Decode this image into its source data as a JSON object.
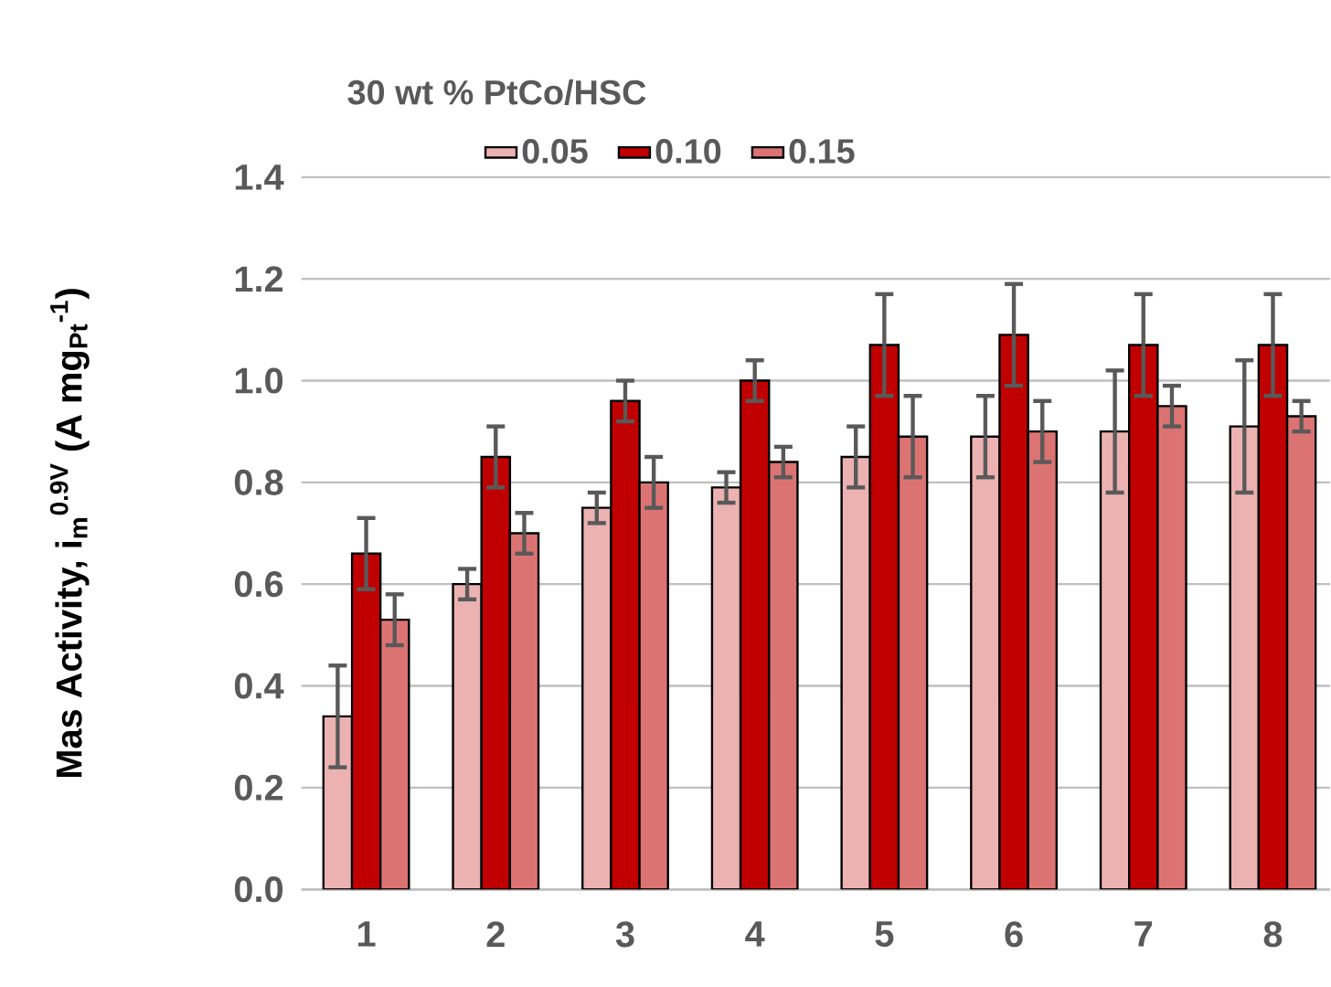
{
  "chart_data": {
    "type": "bar",
    "title": "30 wt % PtCo/HSC",
    "ylabel": "Mas Activity, i$_{m}$$^{0.9V}$ (A mg$_{Pt}$$^{-1}$)",
    "categories": [
      "1",
      "2",
      "3",
      "4",
      "5",
      "6",
      "7",
      "8"
    ],
    "series": [
      {
        "name": "0.05",
        "color": "#ecb2b2",
        "values": [
          0.34,
          0.6,
          0.75,
          0.79,
          0.85,
          0.89,
          0.9,
          0.91
        ],
        "errors": [
          0.1,
          0.03,
          0.03,
          0.03,
          0.06,
          0.08,
          0.12,
          0.13
        ]
      },
      {
        "name": "0.10",
        "color": "#c00000",
        "values": [
          0.66,
          0.85,
          0.96,
          1.0,
          1.07,
          1.09,
          1.07,
          1.07
        ],
        "errors": [
          0.07,
          0.06,
          0.04,
          0.04,
          0.1,
          0.1,
          0.1,
          0.1
        ]
      },
      {
        "name": "0.15",
        "color": "#dc7373",
        "values": [
          0.53,
          0.7,
          0.8,
          0.84,
          0.89,
          0.9,
          0.95,
          0.93
        ],
        "errors": [
          0.05,
          0.04,
          0.05,
          0.03,
          0.08,
          0.06,
          0.04,
          0.03
        ]
      }
    ],
    "ylim": [
      0,
      1.4
    ],
    "yticks": [
      {
        "value": 0,
        "label": "0.0"
      },
      {
        "value": 0.2,
        "label": "0.2"
      },
      {
        "value": 0.4,
        "label": "0.4"
      },
      {
        "value": 0.6,
        "label": "0.6"
      },
      {
        "value": 0.8,
        "label": "0.8"
      },
      {
        "value": 1.0,
        "label": "1.0"
      },
      {
        "value": 1.2,
        "label": "1.2"
      },
      {
        "value": 1.4,
        "label": "1.4"
      }
    ],
    "grid": "y",
    "legend": "top"
  }
}
